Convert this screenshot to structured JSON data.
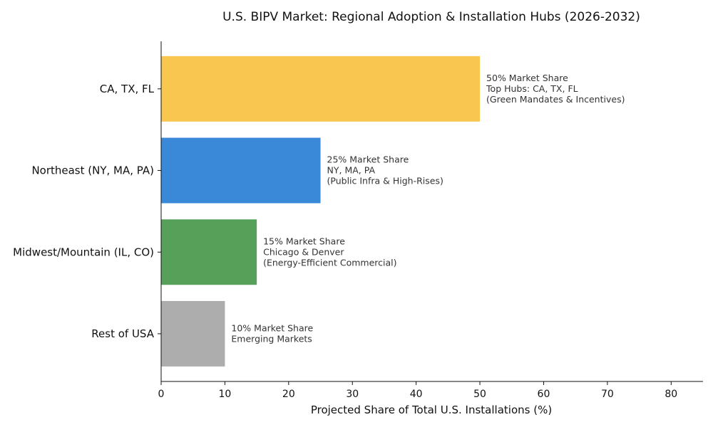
{
  "chart_data": {
    "type": "bar",
    "orientation": "horizontal",
    "title": "U.S. BIPV Market: Regional Adoption & Installation Hubs (2026-2032)",
    "xlabel": "Projected Share of Total U.S. Installations (%)",
    "ylabel": "",
    "xlim": [
      0,
      85
    ],
    "xticks": [
      0,
      10,
      20,
      30,
      40,
      50,
      60,
      70,
      80
    ],
    "grid": false,
    "categories": [
      "CA, TX, FL",
      "Northeast (NY, MA, PA)",
      "Midwest/Mountain (IL, CO)",
      "Rest of USA"
    ],
    "values": [
      50,
      25,
      15,
      10
    ],
    "colors": [
      "#f9c74f",
      "#3a89d8",
      "#57a05a",
      "#adadad"
    ],
    "annotations": [
      [
        "50% Market Share",
        "Top Hubs: CA, TX, FL",
        "(Green Mandates & Incentives)"
      ],
      [
        "25% Market Share",
        "NY, MA, PA",
        "(Public Infra & High-Rises)"
      ],
      [
        "15% Market Share",
        "Chicago & Denver",
        "(Energy-Efficient Commercial)"
      ],
      [
        "10% Market Share",
        "Emerging Markets"
      ]
    ]
  }
}
